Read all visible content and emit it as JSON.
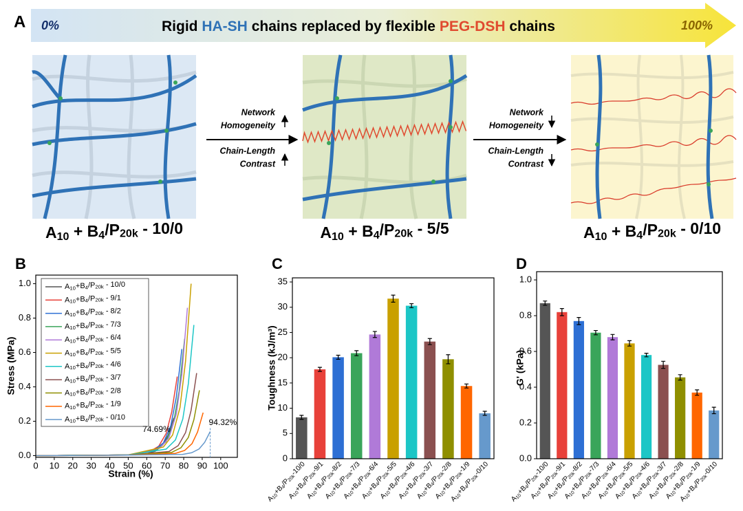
{
  "panel_a": {
    "letter": "A",
    "scale_start": "0%",
    "scale_end": "100%",
    "title_parts": [
      "Rigid",
      "HA-SH",
      "chains replaced by flexible",
      "PEG-DSH",
      "chains"
    ],
    "transitions": [
      {
        "line1": "Network",
        "line2": "Homogeneity",
        "line3": "Chain-Length",
        "line4": "Contrast"
      },
      {
        "line1": "Network",
        "line2": "Homogeneity",
        "line3": "Chain-Length",
        "line4": "Contrast"
      }
    ],
    "labels": [
      "A10 + B4/P20k - 10/0",
      "A10 + B4/P20k - 5/5",
      "A10 + B4/P20k - 0/10"
    ]
  },
  "chart_data": [
    {
      "type": "line",
      "panel": "B",
      "xlabel": "Strain (%)",
      "ylabel": "Stress (MPa)",
      "xlim": [
        0,
        109
      ],
      "ylim": [
        -0.01,
        1.05
      ],
      "xticks": [
        0,
        10,
        20,
        30,
        40,
        50,
        60,
        70,
        80,
        90,
        100
      ],
      "yticks": [
        {
          "value": 0,
          "label": "0.0"
        },
        0.2,
        0.4,
        0.6,
        0.8,
        {
          "value": 1,
          "label": "1.0"
        }
      ],
      "series": [
        {
          "name": "A10+B4/P20k - 10/0",
          "color": "#555555",
          "x": [
            0,
            50,
            59.69,
            64.69,
            68.69,
            71.69,
            74.69
          ],
          "values": [
            0,
            0.003,
            0.011,
            0.026,
            0.062,
            0.121,
            0.22
          ]
        },
        {
          "name": "A10+B4/P20k - 9/1",
          "color": "#e8413a",
          "x": [
            0,
            50,
            61.5,
            66.5,
            70.5,
            73.5,
            76.5
          ],
          "values": [
            0,
            0.004,
            0.023,
            0.055,
            0.129,
            0.253,
            0.46
          ]
        },
        {
          "name": "A10+B4/P20k - 8/2",
          "color": "#2d6fd4",
          "x": [
            0,
            50,
            64,
            69,
            73,
            76,
            79
          ],
          "values": [
            0,
            0.004,
            0.031,
            0.074,
            0.174,
            0.341,
            0.62
          ]
        },
        {
          "name": "A10+B4/P20k - 7/3",
          "color": "#3aa55a",
          "x": [
            0,
            50,
            65.5,
            70.5,
            74.5,
            77.5,
            80.5
          ],
          "values": [
            0,
            0.004,
            0.034,
            0.082,
            0.19,
            0.374,
            0.68
          ]
        },
        {
          "name": "A10+B4/P20k - 6/4",
          "color": "#b07ad8",
          "x": [
            0,
            50,
            67,
            72,
            76,
            79,
            82
          ],
          "values": [
            0,
            0.004,
            0.043,
            0.103,
            0.241,
            0.473,
            0.86
          ]
        },
        {
          "name": "A10+B4/P20k - 5/5",
          "color": "#c9a000",
          "x": [
            0,
            50,
            69,
            74,
            78,
            81,
            84
          ],
          "values": [
            0,
            0.004,
            0.05,
            0.12,
            0.28,
            0.55,
            1.0
          ]
        },
        {
          "name": "A10+B4/P20k - 4/6",
          "color": "#1cc6c6",
          "x": [
            0,
            50,
            70.5,
            75.5,
            79.5,
            82.5,
            85.5
          ],
          "values": [
            0,
            0.004,
            0.038,
            0.091,
            0.213,
            0.418,
            0.76
          ]
        },
        {
          "name": "A10+B4/P20k - 3/7",
          "color": "#8b5050",
          "x": [
            0,
            50,
            72,
            77,
            81,
            84,
            87
          ],
          "values": [
            0,
            0.004,
            0.024,
            0.058,
            0.134,
            0.264,
            0.48
          ]
        },
        {
          "name": "A10+B4/P20k - 2/8",
          "color": "#8f8f00",
          "x": [
            0,
            50,
            73.5,
            78.5,
            82.5,
            85.5,
            88.5
          ],
          "values": [
            0,
            0.004,
            0.019,
            0.046,
            0.106,
            0.209,
            0.38
          ]
        },
        {
          "name": "A10+B4/P20k - 1/9",
          "color": "#ff6600",
          "x": [
            0,
            50,
            75.5,
            80.5,
            84.5,
            87.5,
            90.5
          ],
          "values": [
            0,
            0.003,
            0.013,
            0.03,
            0.07,
            0.138,
            0.25
          ]
        },
        {
          "name": "A10+B4/P20k - 0/10",
          "color": "#6699cc",
          "x": [
            0,
            50,
            79.32,
            84.32,
            88.32,
            91.32,
            94.32
          ],
          "values": [
            0,
            0.003,
            0.007,
            0.017,
            0.039,
            0.077,
            0.14
          ]
        }
      ],
      "annotations": [
        {
          "label": "74.69%",
          "value": 74.69,
          "color": "#555555"
        },
        {
          "label": "94.32%",
          "value": 94.32,
          "color": "#6699cc"
        }
      ]
    },
    {
      "type": "bar",
      "panel": "C",
      "ylabel": "Toughness (kJ/m³)",
      "categories": [
        "A10+B4/P20k-10/0",
        "A10+B4/P20k-9/1",
        "A10+B4/P20k-8/2",
        "A10+B4/P20k-7/3",
        "A10+B4/P20k-6/4",
        "A10+B4/P20k-5/5",
        "A10+B4/P20k-4/6",
        "A10+B4/P20k-3/7",
        "A10+B4/P20k-2/8",
        "A10+B4/P20k-1/9",
        "A10+B4/P20k-0/10"
      ],
      "values": [
        8.2,
        17.7,
        20.1,
        20.9,
        24.6,
        31.7,
        30.3,
        23.2,
        19.7,
        14.4,
        9.0
      ],
      "errors": [
        0.4,
        0.4,
        0.4,
        0.5,
        0.6,
        0.7,
        0.4,
        0.6,
        0.9,
        0.4,
        0.4
      ],
      "colors": [
        "#555555",
        "#e8413a",
        "#2d6fd4",
        "#3aa55a",
        "#b07ad8",
        "#c9a000",
        "#1cc6c6",
        "#8b5050",
        "#8f8f00",
        "#ff6600",
        "#6699cc"
      ],
      "ylim": [
        0,
        35
      ],
      "yticks": [
        0,
        5,
        10,
        15,
        20,
        25,
        30,
        35
      ]
    },
    {
      "type": "bar",
      "panel": "D",
      "ylabel": "G' (kPa)",
      "categories": [
        "A10+B4/P20k-10/0",
        "A10+B4/P20k-9/1",
        "A10+B4/P20k-8/2",
        "A10+B4/P20k-7/3",
        "A10+B4/P20k-6/4",
        "A10+B4/P20k-5/5",
        "A10+B4/P20k-4/6",
        "A10+B4/P20k-3/7",
        "A10+B4/P20k-2/8",
        "A10+B4/P20k-1/9",
        "A10+B4/P20k-0/10"
      ],
      "values": [
        0.87,
        0.82,
        0.77,
        0.705,
        0.68,
        0.645,
        0.58,
        0.525,
        0.455,
        0.37,
        0.27
      ],
      "errors": [
        0.012,
        0.02,
        0.02,
        0.012,
        0.015,
        0.015,
        0.01,
        0.02,
        0.015,
        0.015,
        0.018
      ],
      "colors": [
        "#555555",
        "#e8413a",
        "#2d6fd4",
        "#3aa55a",
        "#b07ad8",
        "#c9a000",
        "#1cc6c6",
        "#8b5050",
        "#8f8f00",
        "#ff6600",
        "#6699cc"
      ],
      "ylim": [
        0,
        1
      ],
      "yticks": [
        {
          "value": 0,
          "label": "0.0"
        },
        0.2,
        0.4,
        0.6,
        0.8,
        {
          "value": 1,
          "label": "1.0"
        }
      ]
    }
  ]
}
